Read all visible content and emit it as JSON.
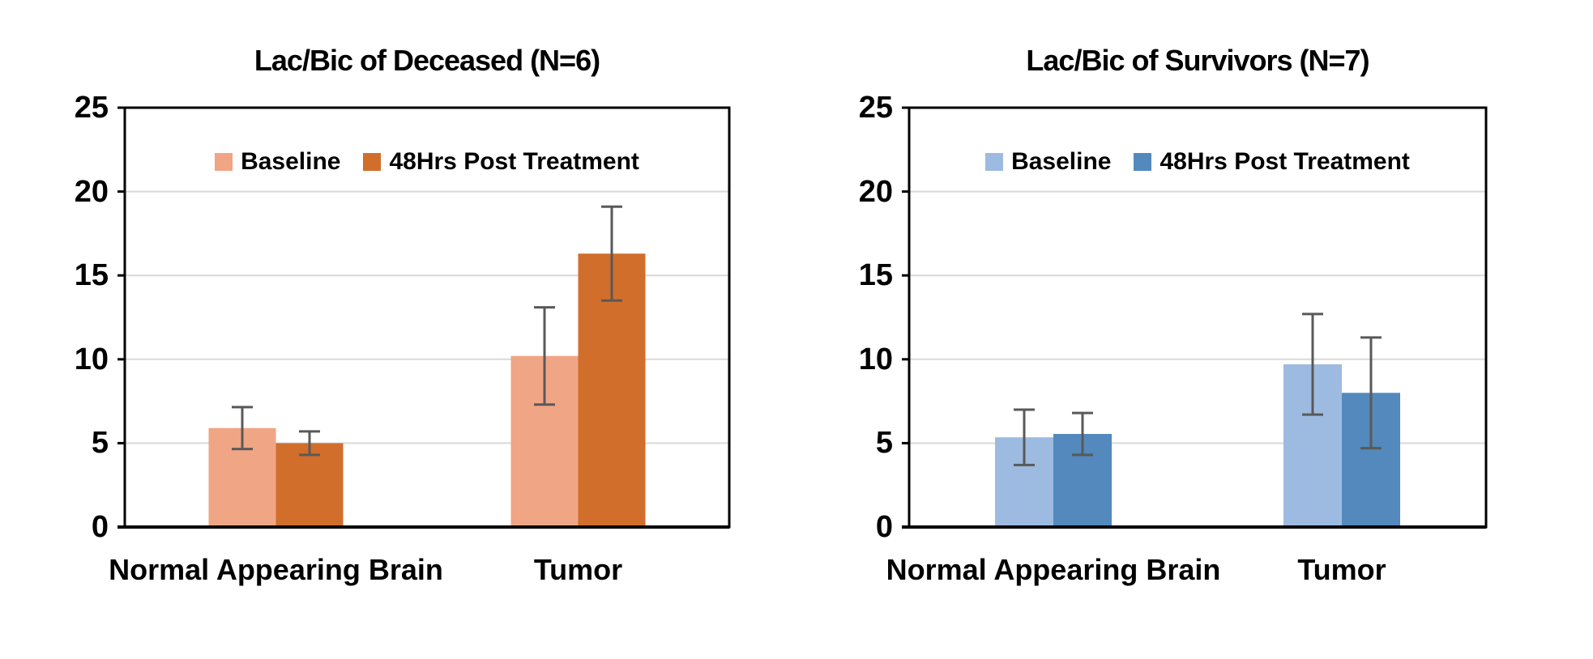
{
  "page": {
    "background": "#FFFFFF"
  },
  "chart_data": [
    {
      "type": "bar",
      "title": "Lac/Bic of Deceased (N=6)",
      "categories": [
        "Normal Appearing Brain",
        "Tumor"
      ],
      "series": [
        {
          "name": "Baseline",
          "color": "#F0A585",
          "values": [
            5.9,
            10.2
          ],
          "errors": [
            1.25,
            2.9
          ]
        },
        {
          "name": "48Hrs Post Treatment",
          "color": "#D16E2B",
          "values": [
            5.0,
            16.3
          ],
          "errors": [
            0.7,
            2.8
          ]
        }
      ],
      "ylim": [
        0,
        25
      ],
      "ytick_step": 5,
      "ytick_labels": [
        "0",
        "5",
        "10",
        "15",
        "20",
        "25"
      ],
      "grid": true,
      "legend_position": "top-center-inside",
      "error_bar_color": "#595959",
      "grid_color": "#D9D9D9",
      "axis_color": "#000000"
    },
    {
      "type": "bar",
      "title": "Lac/Bic of Survivors (N=7)",
      "categories": [
        "Normal Appearing Brain",
        "Tumor"
      ],
      "series": [
        {
          "name": "Baseline",
          "color": "#9DBBE0",
          "values": [
            5.35,
            9.7
          ],
          "errors": [
            1.65,
            3.0
          ]
        },
        {
          "name": "48Hrs Post Treatment",
          "color": "#5389BC",
          "values": [
            5.55,
            8.0
          ],
          "errors": [
            1.25,
            3.3
          ]
        }
      ],
      "ylim": [
        0,
        25
      ],
      "ytick_step": 5,
      "ytick_labels": [
        "0",
        "5",
        "10",
        "15",
        "20",
        "25"
      ],
      "grid": true,
      "legend_position": "top-center-inside",
      "error_bar_color": "#595959",
      "grid_color": "#D9D9D9",
      "axis_color": "#000000"
    }
  ]
}
